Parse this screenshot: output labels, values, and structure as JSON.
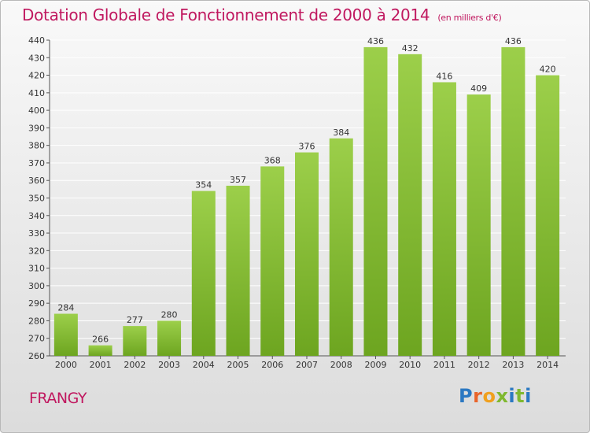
{
  "header": {
    "title": "Dotation Globale de Fonctionnement de 2000 à 2014",
    "subtitle": "(en milliers d'€)"
  },
  "place": "FRANGY",
  "logo": {
    "text": "Proxiti"
  },
  "colors": {
    "title": "#c0185f",
    "bar_top": "#9ccf4a",
    "bar_bottom": "#6da520",
    "grid": "#ffffff"
  },
  "chart_data": {
    "type": "bar",
    "title": "Dotation Globale de Fonctionnement de 2000 à 2014",
    "subtitle": "(en milliers d'€)",
    "xlabel": "",
    "ylabel": "",
    "categories": [
      "2000",
      "2001",
      "2002",
      "2003",
      "2004",
      "2005",
      "2006",
      "2007",
      "2008",
      "2009",
      "2010",
      "2011",
      "2012",
      "2013",
      "2014"
    ],
    "values": [
      284,
      266,
      277,
      280,
      354,
      357,
      368,
      376,
      384,
      436,
      432,
      416,
      409,
      436,
      420
    ],
    "ylim": [
      260,
      440
    ],
    "yticks": [
      260,
      270,
      280,
      290,
      300,
      310,
      320,
      330,
      340,
      350,
      360,
      370,
      380,
      390,
      400,
      410,
      420,
      430,
      440
    ],
    "grid": true,
    "data_labels": true
  }
}
